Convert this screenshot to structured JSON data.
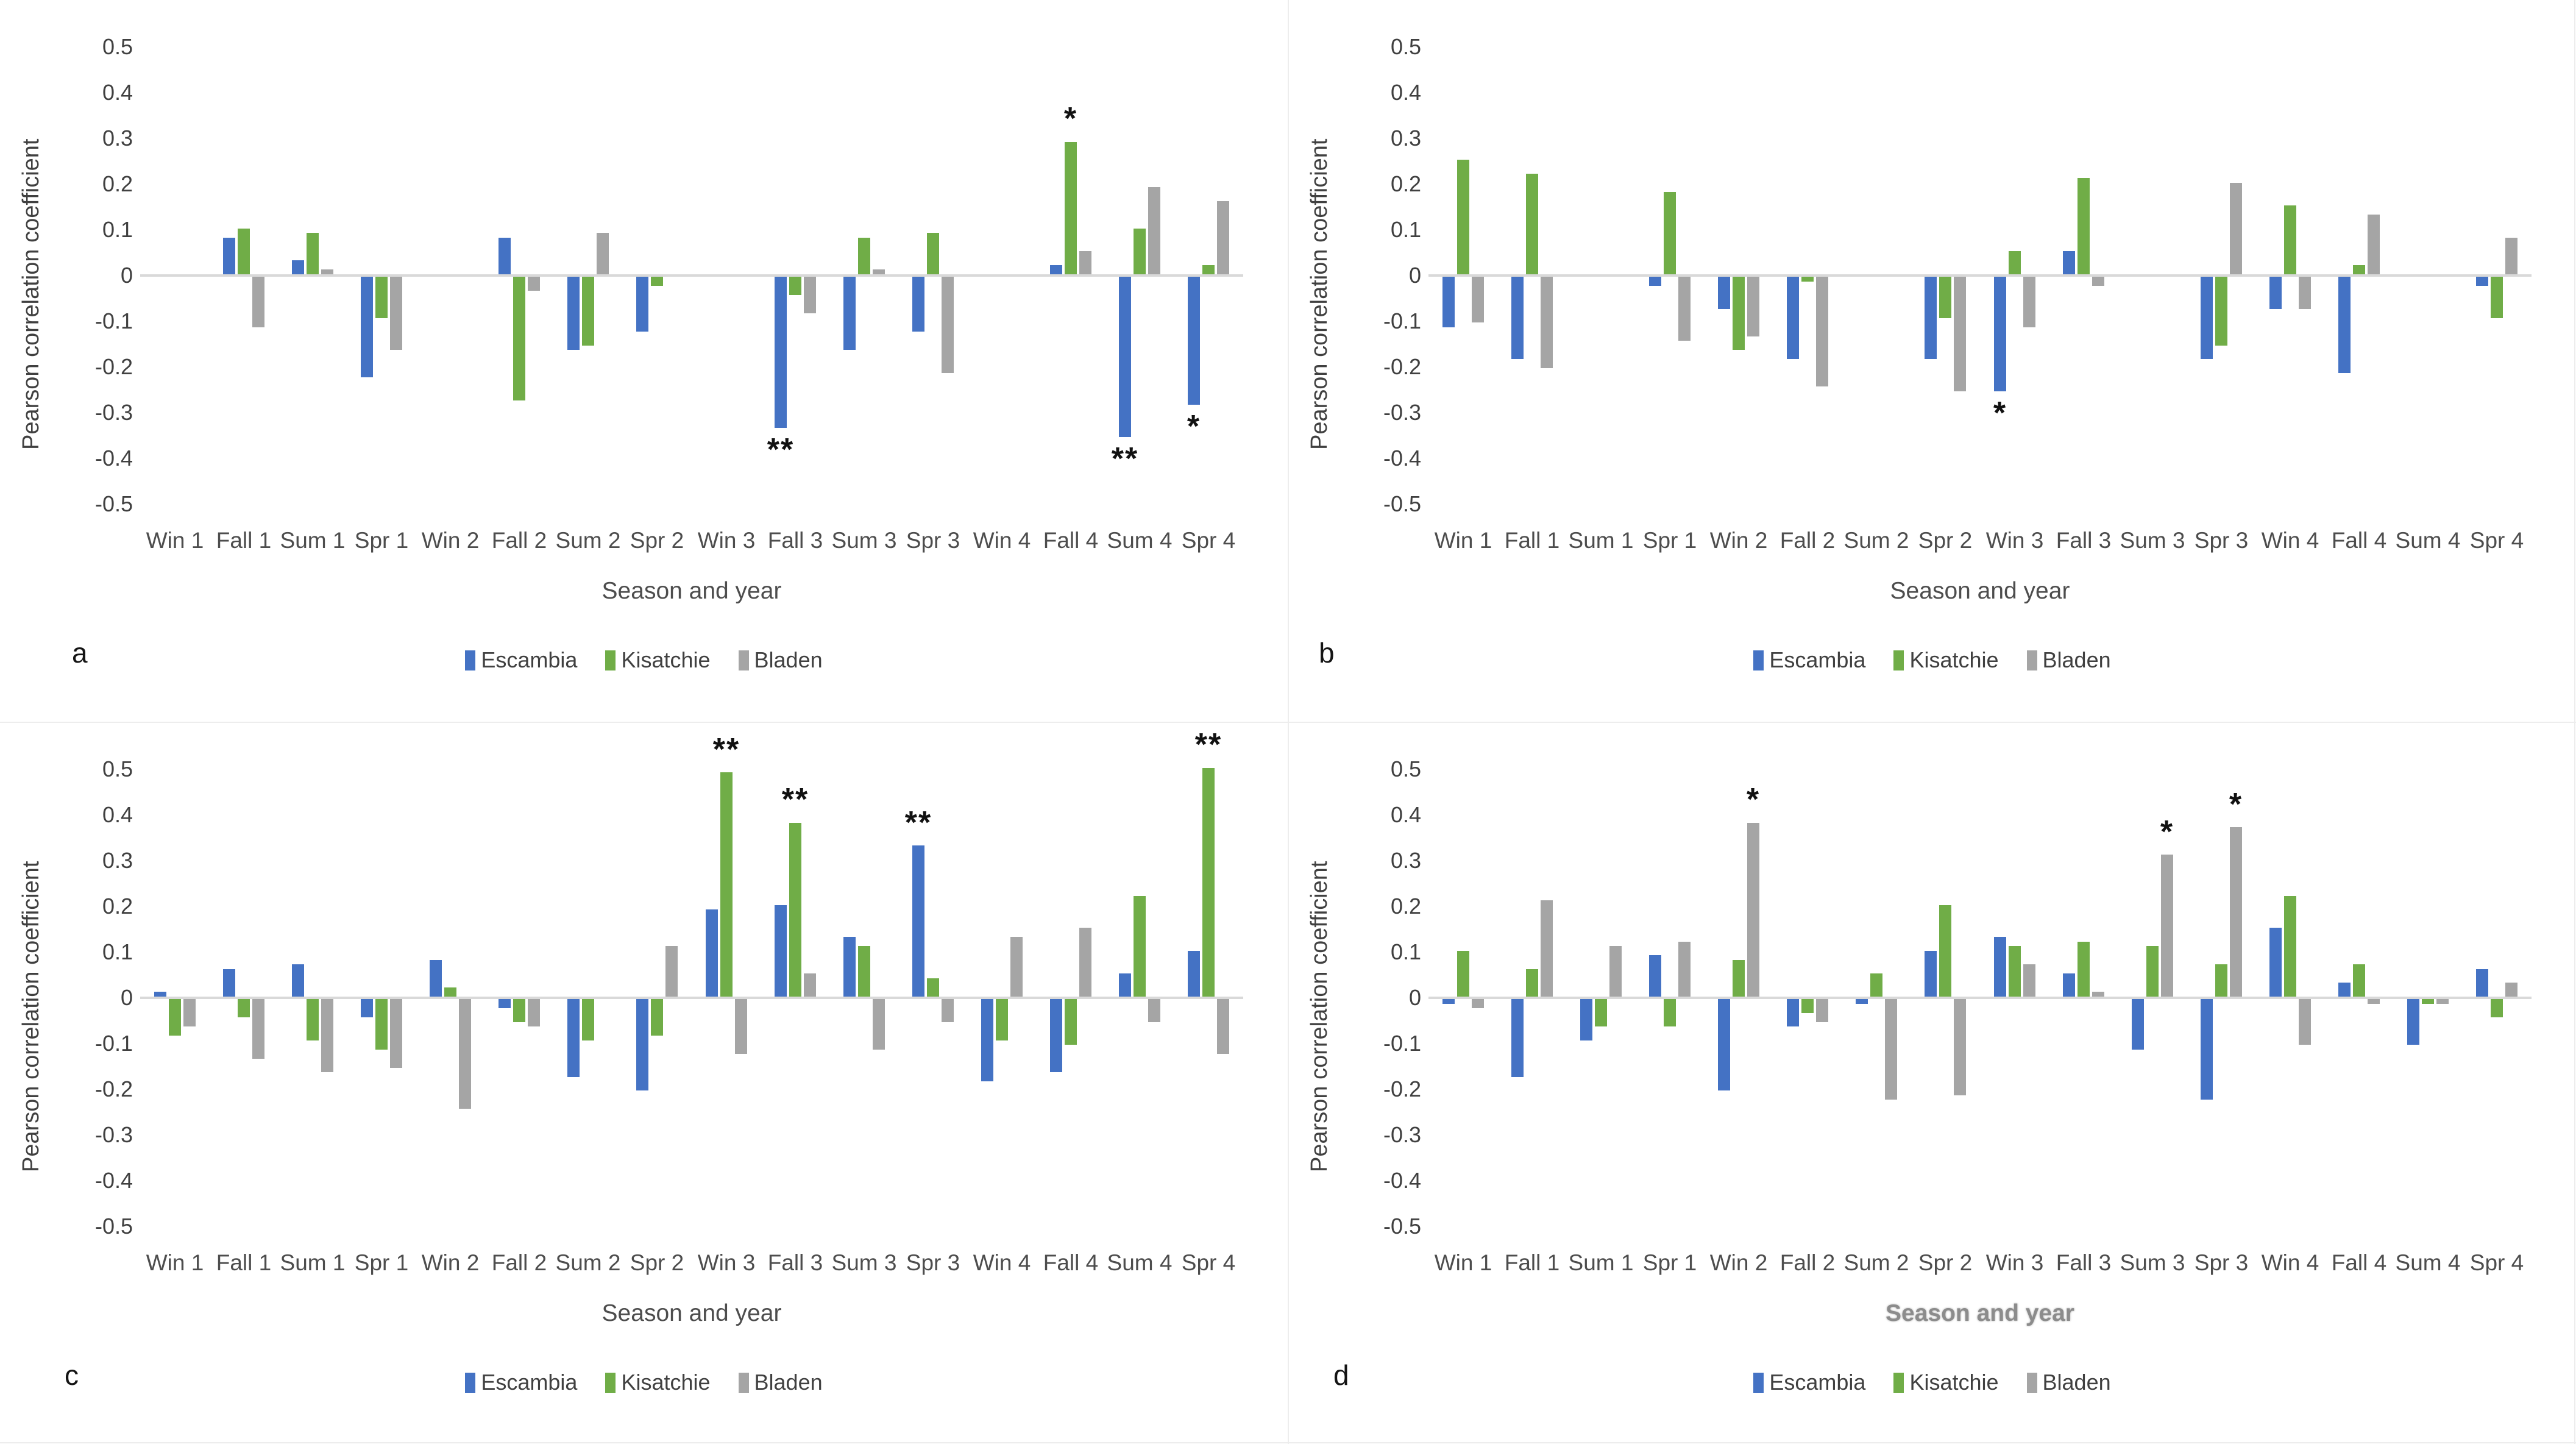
{
  "figure": {
    "y_axis_label": "Pearson correlation coefficient",
    "x_axis_label": "Season and year",
    "legend": [
      "Escambia",
      "Kisatchie",
      "Bladen"
    ],
    "colors": {
      "escambia": "#4472C4",
      "kisatchie": "#70AD47",
      "bladen": "#A5A5A5",
      "zero_line": "#D9D9D9",
      "text": "#404040"
    }
  },
  "chart_data": [
    {
      "id": "a",
      "type": "bar",
      "panel_letter": "a",
      "ylabel": "Pearson correlation coefficient",
      "xlabel": "Season and year",
      "xlabel_emphasis": false,
      "ylim": [
        -0.5,
        0.5
      ],
      "yticks": [
        0.5,
        0.4,
        0.3,
        0.2,
        0.1,
        0,
        -0.1,
        -0.2,
        -0.3,
        -0.4,
        -0.5
      ],
      "grid": false,
      "legend_position": "bottom",
      "categories": [
        "Win 1",
        "Fall 1",
        "Sum 1",
        "Spr 1",
        "Win 2",
        "Fall 2",
        "Sum 2",
        "Spr 2",
        "Win 3",
        "Fall 3",
        "Sum 3",
        "Spr 3",
        "Win 4",
        "Fall 4",
        "Sum 4",
        "Spr 4"
      ],
      "series": [
        {
          "name": "Escambia",
          "color": "#4472C4",
          "values": [
            0,
            0.08,
            0.03,
            -0.22,
            0,
            0.08,
            -0.16,
            -0.12,
            0,
            -0.33,
            -0.16,
            -0.12,
            0,
            0.02,
            -0.35,
            -0.28
          ]
        },
        {
          "name": "Kisatchie",
          "color": "#70AD47",
          "values": [
            0,
            0.1,
            0.09,
            -0.09,
            0,
            -0.27,
            -0.15,
            -0.02,
            0,
            -0.04,
            0.08,
            0.09,
            0,
            0.29,
            0.1,
            0.02
          ]
        },
        {
          "name": "Bladen",
          "color": "#A5A5A5",
          "values": [
            0,
            -0.11,
            0.01,
            -0.16,
            0,
            -0.03,
            0.09,
            0,
            0,
            -0.08,
            0.01,
            -0.21,
            0,
            0.05,
            0.19,
            0.16
          ]
        }
      ],
      "annotations": [
        {
          "category": "Fall 3",
          "series": "Escambia",
          "symbol": "**"
        },
        {
          "category": "Fall 4",
          "series": "Kisatchie",
          "symbol": "*"
        },
        {
          "category": "Sum 4",
          "series": "Escambia",
          "symbol": "**"
        },
        {
          "category": "Spr 4",
          "series": "Escambia",
          "symbol": "*"
        }
      ]
    },
    {
      "id": "b",
      "type": "bar",
      "panel_letter": "b",
      "ylabel": "Pearson correlation coefficient",
      "xlabel": "Season and year",
      "xlabel_emphasis": false,
      "ylim": [
        -0.5,
        0.5
      ],
      "yticks": [
        0.5,
        0.4,
        0.3,
        0.2,
        0.1,
        0,
        -0.1,
        -0.2,
        -0.3,
        -0.4,
        -0.5
      ],
      "grid": false,
      "legend_position": "bottom",
      "categories": [
        "Win 1",
        "Fall 1",
        "Sum 1",
        "Spr 1",
        "Win 2",
        "Fall 2",
        "Sum 2",
        "Spr 2",
        "Win 3",
        "Fall 3",
        "Sum 3",
        "Spr 3",
        "Win 4",
        "Fall 4",
        "Sum 4",
        "Spr 4"
      ],
      "series": [
        {
          "name": "Escambia",
          "color": "#4472C4",
          "values": [
            -0.11,
            -0.18,
            0,
            -0.02,
            -0.07,
            -0.18,
            0,
            -0.18,
            -0.25,
            0.05,
            0,
            -0.18,
            -0.07,
            -0.21,
            0,
            -0.02
          ]
        },
        {
          "name": "Kisatchie",
          "color": "#70AD47",
          "values": [
            0.25,
            0.22,
            0,
            0.18,
            -0.16,
            -0.01,
            0,
            -0.09,
            0.05,
            0.21,
            0,
            -0.15,
            0.15,
            0.02,
            0,
            -0.09
          ]
        },
        {
          "name": "Bladen",
          "color": "#A5A5A5",
          "values": [
            -0.1,
            -0.2,
            0,
            -0.14,
            -0.13,
            -0.24,
            0,
            -0.25,
            -0.11,
            -0.02,
            0,
            0.2,
            -0.07,
            0.13,
            0,
            0.08
          ]
        }
      ],
      "annotations": [
        {
          "category": "Win 3",
          "series": "Escambia",
          "symbol": "*"
        }
      ]
    },
    {
      "id": "c",
      "type": "bar",
      "panel_letter": "c",
      "ylabel": "Pearson correlation coefficient",
      "xlabel": "Season and year",
      "xlabel_emphasis": false,
      "ylim": [
        -0.5,
        0.5
      ],
      "yticks": [
        0.5,
        0.4,
        0.3,
        0.2,
        0.1,
        0,
        -0.1,
        -0.2,
        -0.3,
        -0.4,
        -0.5
      ],
      "grid": false,
      "legend_position": "bottom",
      "categories": [
        "Win 1",
        "Fall 1",
        "Sum 1",
        "Spr 1",
        "Win 2",
        "Fall 2",
        "Sum 2",
        "Spr 2",
        "Win 3",
        "Fall 3",
        "Sum 3",
        "Spr 3",
        "Win 4",
        "Fall 4",
        "Sum 4",
        "Spr 4"
      ],
      "series": [
        {
          "name": "Escambia",
          "color": "#4472C4",
          "values": [
            0.01,
            0.06,
            0.07,
            -0.04,
            0.08,
            -0.02,
            -0.17,
            -0.2,
            0.19,
            0.2,
            0.13,
            0.33,
            -0.18,
            -0.16,
            0.05,
            0.1
          ]
        },
        {
          "name": "Kisatchie",
          "color": "#70AD47",
          "values": [
            -0.08,
            -0.04,
            -0.09,
            -0.11,
            0.02,
            -0.05,
            -0.09,
            -0.08,
            0.49,
            0.38,
            0.11,
            0.04,
            -0.09,
            -0.1,
            0.22,
            0.5
          ]
        },
        {
          "name": "Bladen",
          "color": "#A5A5A5",
          "values": [
            -0.06,
            -0.13,
            -0.16,
            -0.15,
            -0.24,
            -0.06,
            0,
            0.11,
            -0.12,
            0.05,
            -0.11,
            -0.05,
            0.13,
            0.15,
            -0.05,
            -0.12
          ]
        }
      ],
      "annotations": [
        {
          "category": "Win 3",
          "series": "Kisatchie",
          "symbol": "**"
        },
        {
          "category": "Fall 3",
          "series": "Kisatchie",
          "symbol": "**"
        },
        {
          "category": "Spr 3",
          "series": "Escambia",
          "symbol": "**"
        },
        {
          "category": "Spr 4",
          "series": "Kisatchie",
          "symbol": "**"
        }
      ]
    },
    {
      "id": "d",
      "type": "bar",
      "panel_letter": "d",
      "ylabel": "Pearson correlation coefficient",
      "xlabel": "Season and year",
      "xlabel_emphasis": true,
      "ylim": [
        -0.5,
        0.5
      ],
      "yticks": [
        0.5,
        0.4,
        0.3,
        0.2,
        0.1,
        0,
        -0.1,
        -0.2,
        -0.3,
        -0.4,
        -0.5
      ],
      "grid": false,
      "legend_position": "bottom",
      "categories": [
        "Win 1",
        "Fall 1",
        "Sum 1",
        "Spr 1",
        "Win 2",
        "Fall 2",
        "Sum 2",
        "Spr 2",
        "Win 3",
        "Fall 3",
        "Sum 3",
        "Spr 3",
        "Win 4",
        "Fall 4",
        "Sum 4",
        "Spr 4"
      ],
      "series": [
        {
          "name": "Escambia",
          "color": "#4472C4",
          "values": [
            -0.01,
            -0.17,
            -0.09,
            0.09,
            -0.2,
            -0.06,
            -0.01,
            0.1,
            0.13,
            0.05,
            -0.11,
            -0.22,
            0.15,
            0.03,
            -0.1,
            0.06
          ]
        },
        {
          "name": "Kisatchie",
          "color": "#70AD47",
          "values": [
            0.1,
            0.06,
            -0.06,
            -0.06,
            0.08,
            -0.03,
            0.05,
            0.2,
            0.11,
            0.12,
            0.11,
            0.07,
            0.22,
            0.07,
            -0.01,
            -0.04
          ]
        },
        {
          "name": "Bladen",
          "color": "#A5A5A5",
          "values": [
            -0.02,
            0.21,
            0.11,
            0.12,
            0.38,
            -0.05,
            -0.22,
            -0.21,
            0.07,
            0.01,
            0.31,
            0.37,
            -0.1,
            -0.01,
            -0.01,
            0.03
          ]
        }
      ],
      "annotations": [
        {
          "category": "Win 2",
          "series": "Bladen",
          "symbol": "*"
        },
        {
          "category": "Sum 3",
          "series": "Bladen",
          "symbol": "*"
        },
        {
          "category": "Spr 3",
          "series": "Bladen",
          "symbol": "*"
        }
      ]
    }
  ]
}
